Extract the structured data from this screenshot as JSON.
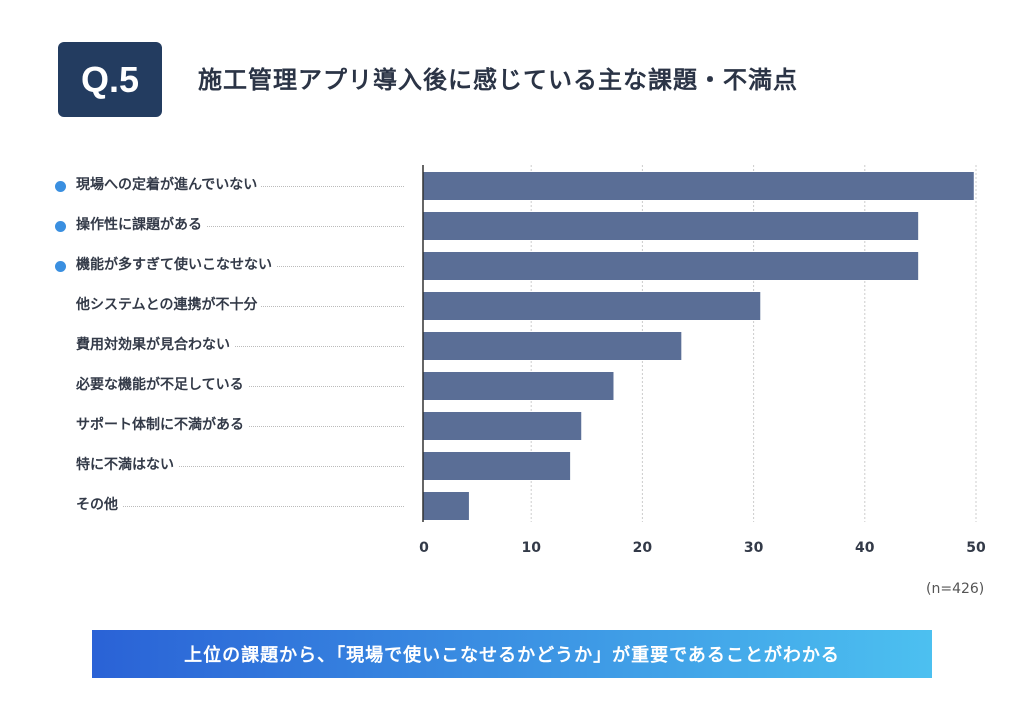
{
  "header": {
    "badge": "Q.5",
    "title": "施工管理アプリ導入後に感じている主な課題・不満点"
  },
  "chart_data": {
    "type": "bar",
    "orientation": "horizontal",
    "title": "施工管理アプリ導入後に感じている主な課題・不満点",
    "categories": [
      "現場への定着が進んでいない",
      "操作性に課題がある",
      "機能が多すぎて使いこなせない",
      "他システムとの連携が不十分",
      "費用対効果が見合わない",
      "必要な機能が不足している",
      "サポート体制に不満がある",
      "特に不満はない",
      "その他"
    ],
    "values": [
      49.8,
      44.8,
      44.8,
      30.6,
      23.5,
      17.4,
      14.5,
      13.5,
      4.4
    ],
    "highlighted": [
      true,
      true,
      true,
      false,
      false,
      false,
      false,
      false,
      false
    ],
    "xlim": [
      0,
      50
    ],
    "xticks": [
      "0",
      "10",
      "20",
      "30",
      "40",
      "50"
    ],
    "grid": true,
    "bar_color": "#5a6e96",
    "highlight_color": "#3a8fe0",
    "note": "(n=426)"
  },
  "banner": {
    "text": "上位の課題から、「現場で使いこなせるかどうか」が重要であることがわかる"
  }
}
